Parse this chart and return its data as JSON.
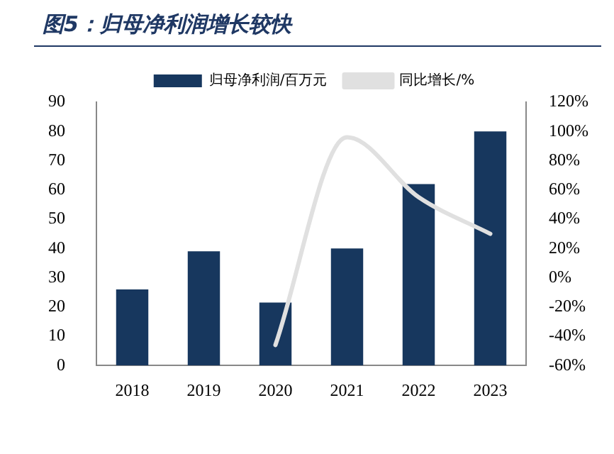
{
  "chart_data": {
    "type": "bar",
    "title": "图5：归母净利润增长较快",
    "categories": [
      "2018",
      "2019",
      "2020",
      "2021",
      "2022",
      "2023"
    ],
    "series": [
      {
        "name": "归母净利润/百万元",
        "color": "#17375e",
        "values": [
          26,
          39,
          21.5,
          40,
          62,
          80
        ]
      },
      {
        "name": "同比增长/%",
        "type": "line",
        "axis": "y2",
        "color": "#e0e0e0",
        "values": [
          null,
          null,
          -46,
          96,
          55,
          30
        ]
      }
    ],
    "ylim": [
      0,
      90
    ],
    "yticks": [
      0,
      10,
      20,
      30,
      40,
      50,
      60,
      70,
      80,
      90
    ],
    "y2lim": [
      -60,
      120
    ],
    "y2ticks": [
      {
        "value": -60,
        "label": "-60%"
      },
      {
        "value": -40,
        "label": "-40%"
      },
      {
        "value": -20,
        "label": "-20%"
      },
      {
        "value": 0,
        "label": "0%"
      },
      {
        "value": 20,
        "label": "20%"
      },
      {
        "value": 40,
        "label": "40%"
      },
      {
        "value": 60,
        "label": "60%"
      },
      {
        "value": 80,
        "label": "80%"
      },
      {
        "value": 100,
        "label": "100%"
      },
      {
        "value": 120,
        "label": "120%"
      }
    ],
    "legend": "top",
    "grid": false,
    "marker": "none"
  }
}
